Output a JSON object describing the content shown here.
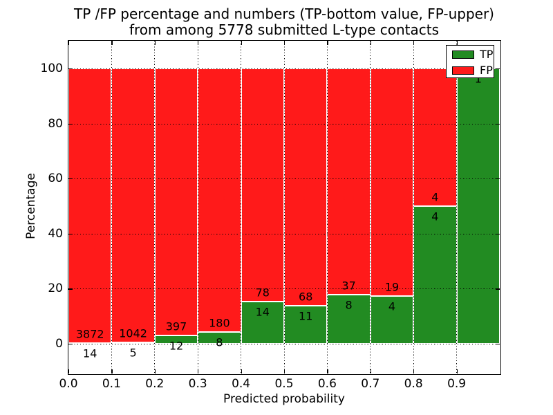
{
  "title": {
    "line1": "TP /FP percentage and numbers (TP-bottom value, FP-upper)",
    "line2": "from among 5778 submitted L-type contacts"
  },
  "axes": {
    "xlabel": "Predicted probability",
    "ylabel": "Percentage",
    "x_tick_labels": [
      "0.0",
      "0.1",
      "0.2",
      "0.3",
      "0.4",
      "0.5",
      "0.6",
      "0.7",
      "0.8",
      "0.9"
    ],
    "y_tick_labels": [
      "0",
      "20",
      "40",
      "60",
      "80",
      "100"
    ],
    "y_tick_values": [
      0,
      20,
      40,
      60,
      80,
      100
    ]
  },
  "legend": {
    "items": [
      {
        "label": "TP",
        "color": "#228b22"
      },
      {
        "label": "FP",
        "color": "#ff1a1a"
      }
    ]
  },
  "chart_data": {
    "type": "bar",
    "subtype": "stacked-percentage",
    "title": "TP /FP percentage and numbers (TP-bottom value, FP-upper) from among 5778 submitted L-type contacts",
    "xlabel": "Predicted probability",
    "ylabel": "Percentage",
    "xlim": [
      0,
      1.0
    ],
    "ylim": [
      -10.8,
      110.1
    ],
    "grid": "dotted",
    "legend_position": "upper right",
    "total_contacts": 5778,
    "colors": {
      "tp": "#228b22",
      "fp": "#ff1a1a"
    },
    "series": [
      {
        "name": "TP",
        "counts": [
          14,
          5,
          12,
          8,
          14,
          11,
          8,
          4,
          4,
          1
        ]
      },
      {
        "name": "FP",
        "counts": [
          3872,
          1042,
          397,
          180,
          78,
          68,
          37,
          19,
          4,
          0
        ]
      }
    ],
    "bins": [
      {
        "range": [
          0.0,
          0.1
        ],
        "tp": 14,
        "fp": 3872,
        "tp_pct": 0.36
      },
      {
        "range": [
          0.1,
          0.2
        ],
        "tp": 5,
        "fp": 1042,
        "tp_pct": 0.48
      },
      {
        "range": [
          0.2,
          0.3
        ],
        "tp": 12,
        "fp": 397,
        "tp_pct": 2.93
      },
      {
        "range": [
          0.3,
          0.4
        ],
        "tp": 8,
        "fp": 180,
        "tp_pct": 4.26
      },
      {
        "range": [
          0.4,
          0.5
        ],
        "tp": 14,
        "fp": 78,
        "tp_pct": 15.22
      },
      {
        "range": [
          0.5,
          0.6
        ],
        "tp": 11,
        "fp": 68,
        "tp_pct": 13.92
      },
      {
        "range": [
          0.6,
          0.7
        ],
        "tp": 8,
        "fp": 37,
        "tp_pct": 17.78
      },
      {
        "range": [
          0.7,
          0.8
        ],
        "tp": 4,
        "fp": 19,
        "tp_pct": 17.39
      },
      {
        "range": [
          0.8,
          0.9
        ],
        "tp": 4,
        "fp": 4,
        "tp_pct": 50.0
      },
      {
        "range": [
          0.9,
          1.0
        ],
        "tp": 1,
        "fp": 0,
        "tp_pct": 100.0
      }
    ]
  }
}
